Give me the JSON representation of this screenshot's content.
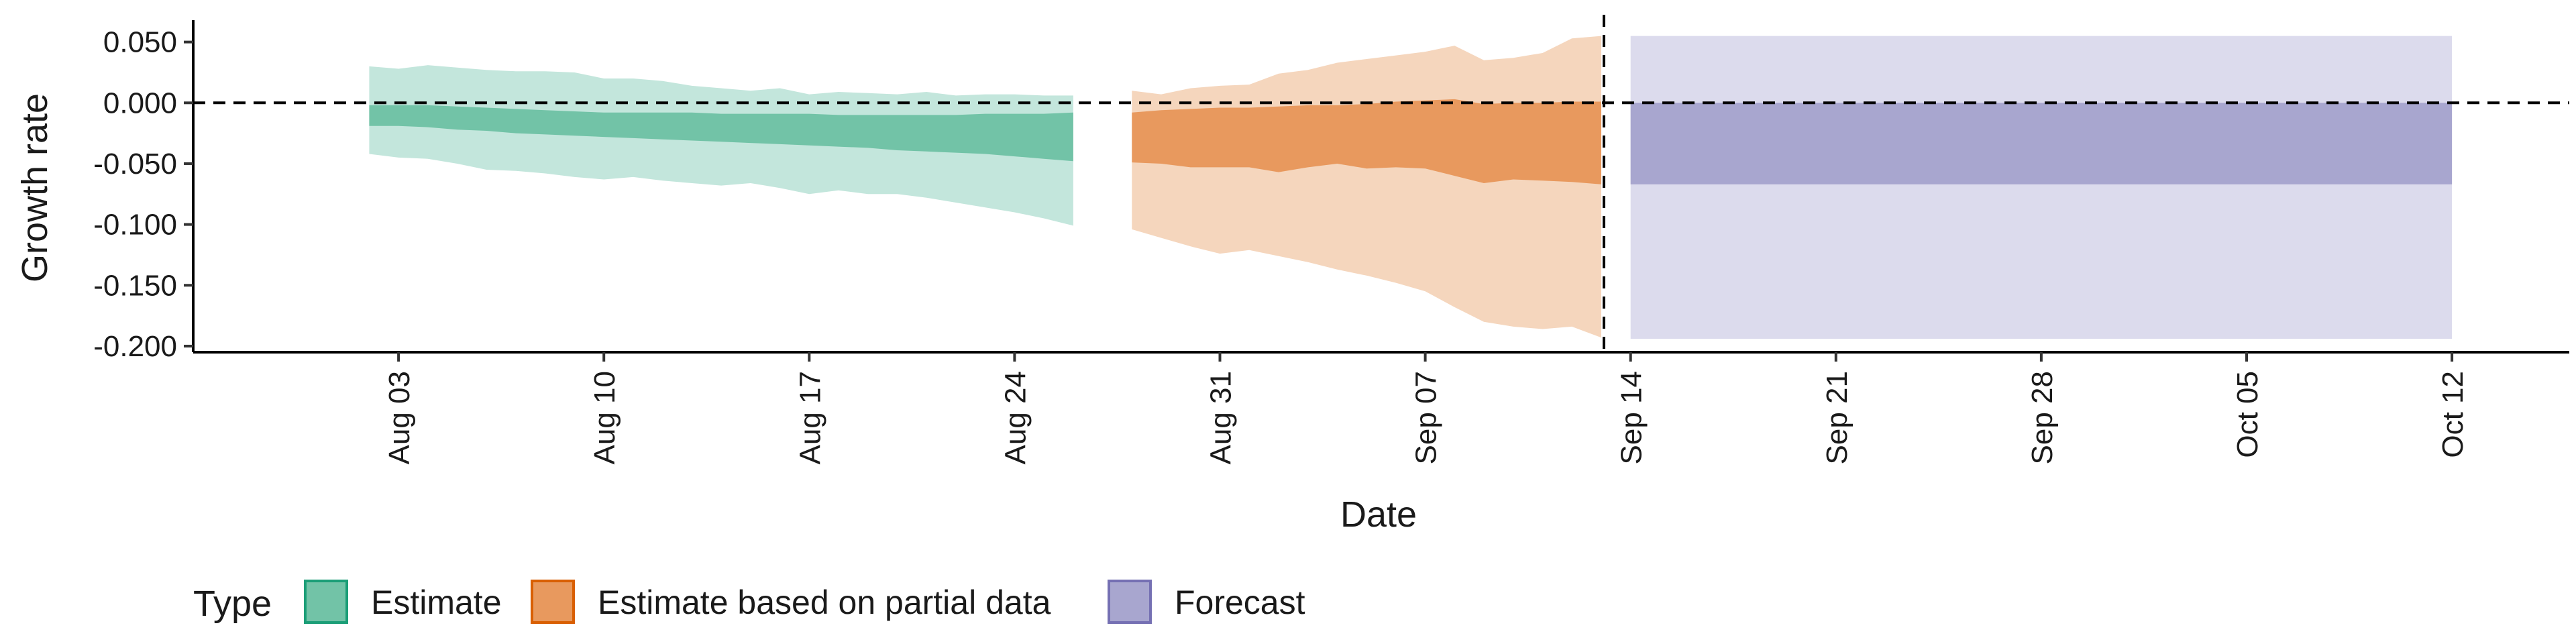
{
  "chart_data": {
    "type": "area",
    "xlabel": "Date",
    "ylabel": "Growth rate",
    "ylim": [
      -0.205,
      0.068
    ],
    "xlim": [
      "2020-07-27",
      "2020-10-16"
    ],
    "y_ticks": [
      0.05,
      0.0,
      -0.05,
      -0.1,
      -0.15,
      -0.2
    ],
    "y_tick_labels": [
      "0.050",
      "0.000",
      "-0.050",
      "-0.100",
      "-0.150",
      "-0.200"
    ],
    "x_ticks": [
      "2020-08-03",
      "2020-08-10",
      "2020-08-17",
      "2020-08-24",
      "2020-08-31",
      "2020-09-07",
      "2020-09-14",
      "2020-09-21",
      "2020-09-28",
      "2020-10-05",
      "2020-10-12"
    ],
    "x_tick_labels": [
      "Aug 03",
      "Aug 10",
      "Aug 17",
      "Aug 24",
      "Aug 31",
      "Sep 07",
      "Sep 14",
      "Sep 21",
      "Sep 28",
      "Oct 05",
      "Oct 12"
    ],
    "reference_lines": {
      "horizontal_y": 0.0,
      "vertical_x": "2020-09-13",
      "style": "dashed"
    },
    "grid": false,
    "legend": {
      "title": "Type",
      "placement": "bottom-left",
      "entries": [
        "Estimate",
        "Estimate based on partial data",
        "Forecast"
      ]
    },
    "series": [
      {
        "type": "Estimate",
        "fill_outer": "#c3e6dc",
        "fill_inner": "#72c3a7",
        "swatch_border": "#1b9e77",
        "x": [
          "2020-08-02",
          "2020-08-03",
          "2020-08-04",
          "2020-08-05",
          "2020-08-06",
          "2020-08-07",
          "2020-08-08",
          "2020-08-09",
          "2020-08-10",
          "2020-08-11",
          "2020-08-12",
          "2020-08-13",
          "2020-08-14",
          "2020-08-15",
          "2020-08-16",
          "2020-08-17",
          "2020-08-18",
          "2020-08-19",
          "2020-08-20",
          "2020-08-21",
          "2020-08-22",
          "2020-08-23",
          "2020-08-24",
          "2020-08-25",
          "2020-08-26"
        ],
        "upper90": [
          0.03,
          0.028,
          0.031,
          0.029,
          0.027,
          0.026,
          0.026,
          0.025,
          0.02,
          0.02,
          0.018,
          0.014,
          0.012,
          0.01,
          0.012,
          0.007,
          0.009,
          0.008,
          0.007,
          0.009,
          0.006,
          0.007,
          0.007,
          0.006,
          0.006
        ],
        "upper50": [
          -0.002,
          -0.002,
          -0.002,
          -0.003,
          -0.004,
          -0.005,
          -0.006,
          -0.007,
          -0.008,
          -0.008,
          -0.008,
          -0.008,
          -0.009,
          -0.009,
          -0.009,
          -0.009,
          -0.01,
          -0.01,
          -0.01,
          -0.01,
          -0.01,
          -0.009,
          -0.009,
          -0.009,
          -0.008
        ],
        "lower50": [
          -0.019,
          -0.019,
          -0.02,
          -0.022,
          -0.023,
          -0.025,
          -0.026,
          -0.027,
          -0.028,
          -0.029,
          -0.03,
          -0.031,
          -0.032,
          -0.033,
          -0.034,
          -0.035,
          -0.036,
          -0.037,
          -0.039,
          -0.04,
          -0.041,
          -0.042,
          -0.044,
          -0.046,
          -0.048
        ],
        "lower90": [
          -0.042,
          -0.045,
          -0.046,
          -0.05,
          -0.055,
          -0.056,
          -0.058,
          -0.061,
          -0.063,
          -0.061,
          -0.064,
          -0.066,
          -0.068,
          -0.066,
          -0.07,
          -0.075,
          -0.072,
          -0.075,
          -0.075,
          -0.078,
          -0.082,
          -0.086,
          -0.09,
          -0.095,
          -0.101
        ]
      },
      {
        "type": "Estimate based on partial data",
        "fill_outer": "#f5d6bd",
        "fill_inner": "#e8995e",
        "swatch_border": "#d95f02",
        "x": [
          "2020-08-28",
          "2020-08-29",
          "2020-08-30",
          "2020-08-31",
          "2020-09-01",
          "2020-09-02",
          "2020-09-03",
          "2020-09-04",
          "2020-09-05",
          "2020-09-06",
          "2020-09-07",
          "2020-09-08",
          "2020-09-09",
          "2020-09-10",
          "2020-09-11",
          "2020-09-12",
          "2020-09-13"
        ],
        "upper90": [
          0.01,
          0.007,
          0.012,
          0.014,
          0.015,
          0.024,
          0.027,
          0.033,
          0.036,
          0.039,
          0.042,
          0.047,
          0.035,
          0.037,
          0.041,
          0.053,
          0.055
        ],
        "upper50": [
          -0.008,
          -0.006,
          -0.005,
          -0.004,
          -0.004,
          -0.003,
          -0.002,
          -0.002,
          -0.001,
          0.001,
          0.002,
          0.003,
          -0.001,
          0.0,
          0.0,
          0.001,
          0.001
        ],
        "lower50": [
          -0.049,
          -0.05,
          -0.053,
          -0.053,
          -0.053,
          -0.057,
          -0.053,
          -0.05,
          -0.054,
          -0.053,
          -0.054,
          -0.06,
          -0.066,
          -0.063,
          -0.064,
          -0.065,
          -0.067
        ],
        "lower90": [
          -0.104,
          -0.111,
          -0.118,
          -0.124,
          -0.121,
          -0.126,
          -0.131,
          -0.137,
          -0.142,
          -0.148,
          -0.155,
          -0.168,
          -0.18,
          -0.184,
          -0.186,
          -0.184,
          -0.193
        ]
      },
      {
        "type": "Forecast",
        "fill_outer": "#dcdbed",
        "fill_inner": "#a8a6cf",
        "swatch_border": "#7570b3",
        "x": [
          "2020-09-14",
          "2020-10-12"
        ],
        "upper90": [
          0.055,
          0.055
        ],
        "upper50": [
          0.0,
          0.0
        ],
        "lower50": [
          -0.067,
          -0.067
        ],
        "lower90": [
          -0.194,
          -0.194
        ]
      }
    ]
  }
}
